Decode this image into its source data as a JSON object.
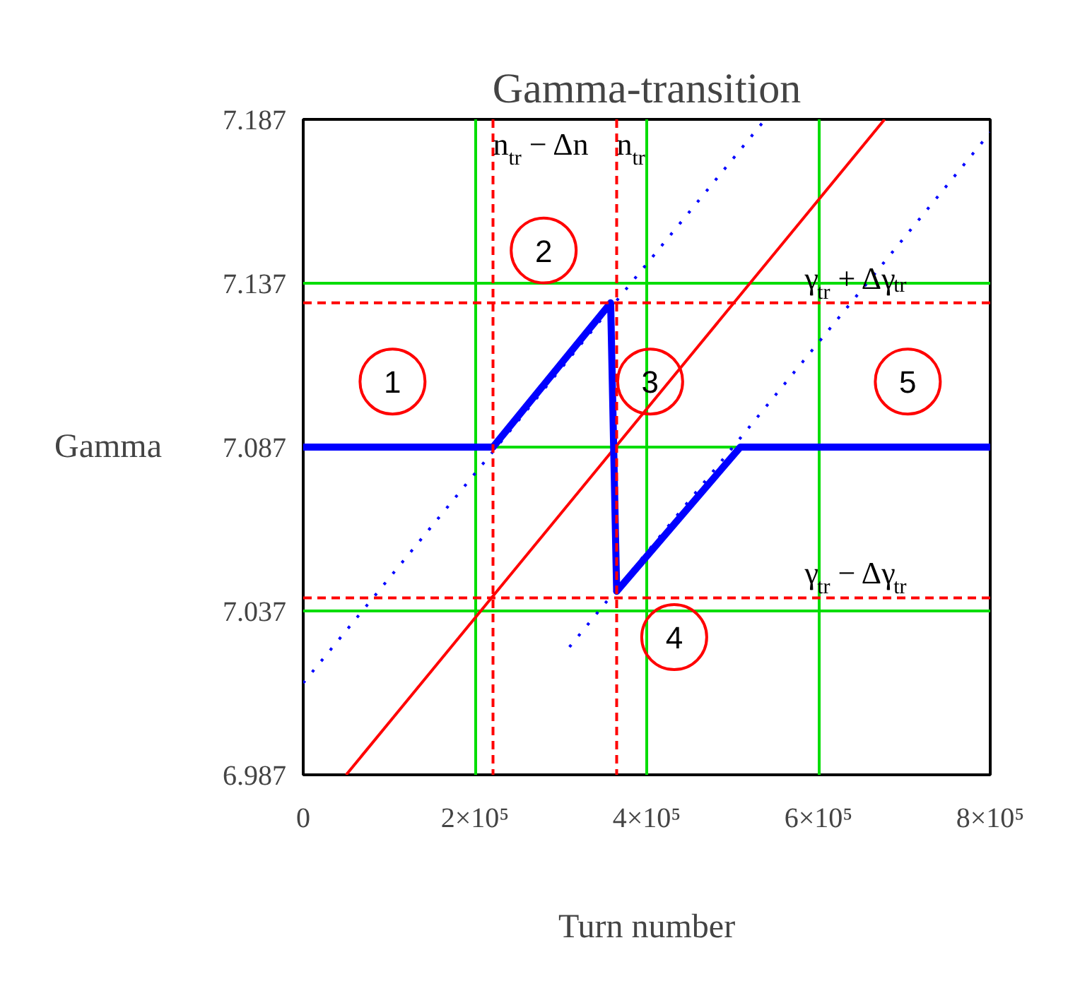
{
  "chart_data": {
    "type": "line",
    "title": "Gamma-transition",
    "xlabel": "Turn number",
    "ylabel": "Gamma",
    "xlim": [
      0,
      800000
    ],
    "ylim": [
      6.987,
      7.187
    ],
    "xticks": [
      0,
      {
        "value": 200000,
        "label": "2×10⁵"
      },
      {
        "value": 400000,
        "label": "4×10⁵"
      },
      {
        "value": 600000,
        "label": "6×10⁵"
      },
      {
        "value": 800000,
        "label": "8×10⁵"
      }
    ],
    "yticks": [
      6.987,
      7.037,
      7.087,
      7.137,
      7.187
    ],
    "grid": true,
    "marker": "none",
    "series": [
      {
        "color": "#ff0000",
        "line_style": "solid",
        "x": [
          50000,
          677000
        ],
        "values": [
          6.987,
          7.187
        ]
      },
      {
        "color": "#0000ff",
        "line_style": "dotted",
        "x": [
          0,
          538000
        ],
        "values": [
          7.015,
          7.187
        ]
      },
      {
        "color": "#0000ff",
        "line_style": "dotted",
        "x": [
          310000,
          800000
        ],
        "values": [
          7.026,
          7.183
        ]
      },
      {
        "color": "#0000ff",
        "line_style": "solid",
        "x": [
          0,
          221000,
          358000,
          365000,
          509000,
          800000
        ],
        "values": [
          7.087,
          7.087,
          7.131,
          7.043,
          7.087,
          7.087
        ]
      }
    ],
    "ref_lines": [
      {
        "axis": "x",
        "value": 221000,
        "label": "n$_{tr}$ − Δn",
        "color": "#ff0000",
        "line_style": "dashed"
      },
      {
        "axis": "x",
        "value": 365000,
        "label": "n$_{tr}$",
        "color": "#ff0000",
        "line_style": "dashed"
      },
      {
        "axis": "y",
        "value": 7.131,
        "label": "γ$_{tr}$ + Δγ$_{tr}$",
        "color": "#ff0000",
        "line_style": "dashed"
      },
      {
        "axis": "y",
        "value": 7.041,
        "label": "γ$_{tr}$ − Δγ$_{tr}$",
        "color": "#ff0000",
        "line_style": "dashed"
      }
    ],
    "annotations": [
      "1",
      "2",
      "3",
      "4",
      "5"
    ]
  }
}
